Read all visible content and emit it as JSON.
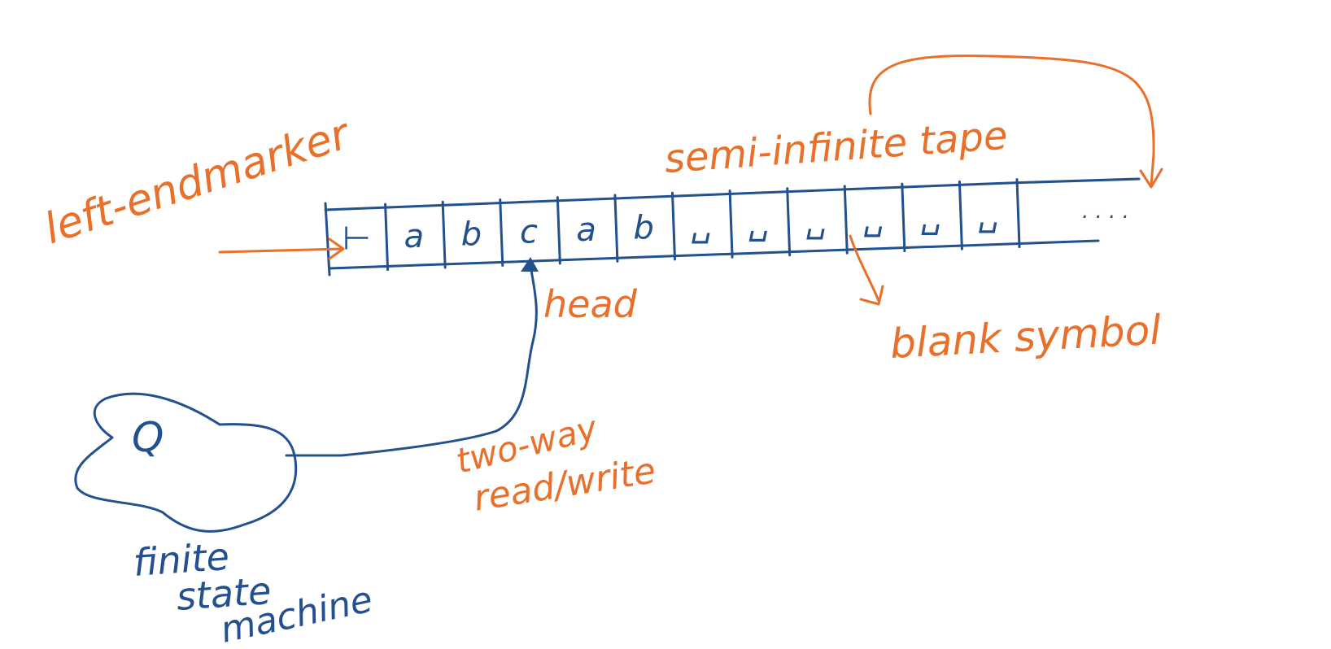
{
  "colors": {
    "ink_orange": "#e8702a",
    "ink_blue": "#23508e",
    "background": "#ffffff"
  },
  "labels": {
    "left_endmarker": "left-endmarker",
    "semi_infinite_tape": "semi-infinite tape",
    "head": "head",
    "blank_symbol": "blank symbol",
    "two_way": "two-way",
    "read_write": "read/write",
    "state": "Q",
    "fsm_line1": "finite",
    "fsm_line2": "state",
    "fsm_line3": "machine",
    "continuation": ". . . ."
  },
  "tape": {
    "cells": [
      "⊢",
      "a",
      "b",
      "c",
      "a",
      "b",
      "␣",
      "␣",
      "␣",
      "␣",
      "␣",
      "␣"
    ]
  }
}
